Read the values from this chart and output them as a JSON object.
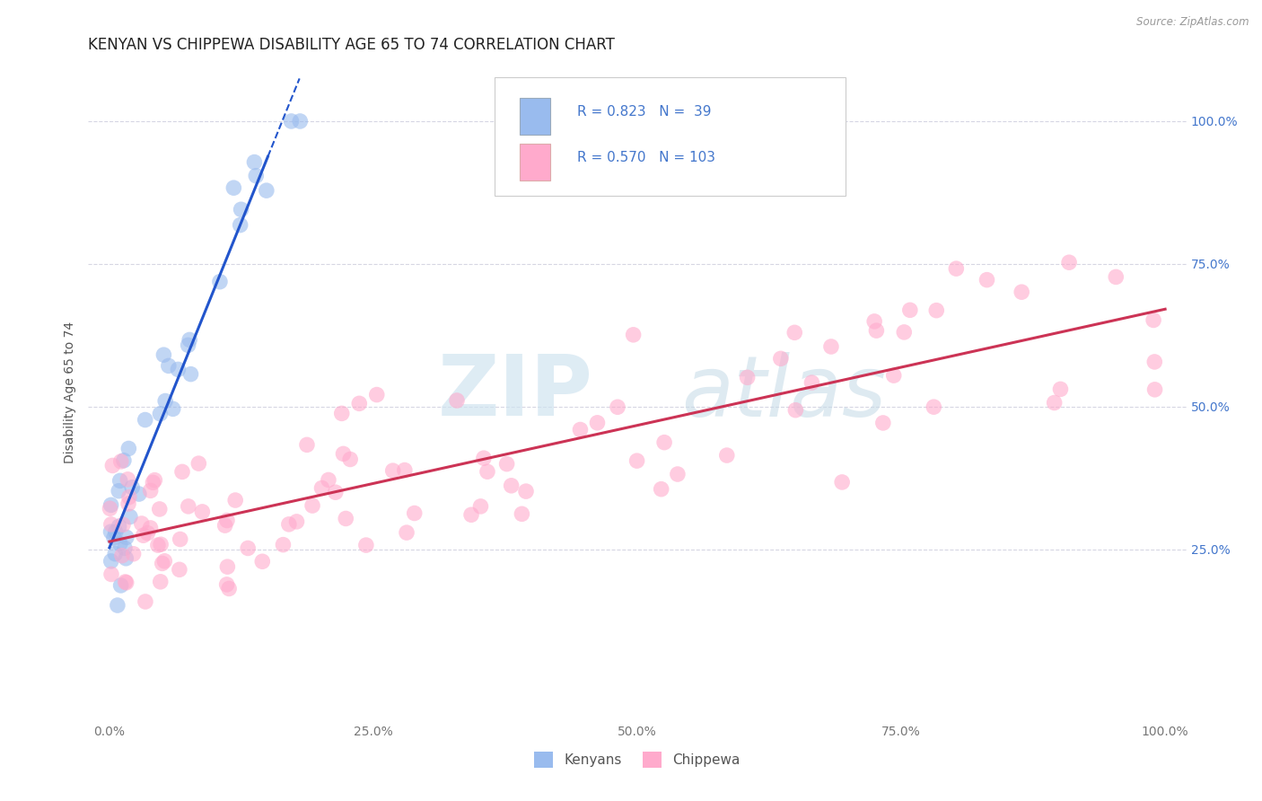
{
  "title": "KENYAN VS CHIPPEWA DISABILITY AGE 65 TO 74 CORRELATION CHART",
  "source_text": "Source: ZipAtlas.com",
  "ylabel": "Disability Age 65 to 74",
  "xticklabels": [
    "0.0%",
    "25.0%",
    "50.0%",
    "75.0%",
    "100.0%"
  ],
  "yticklabels": [
    "25.0%",
    "50.0%",
    "75.0%",
    "100.0%"
  ],
  "xlim": [
    -2.0,
    102.0
  ],
  "ylim": [
    -5.0,
    110.0
  ],
  "legend_r1": "R = 0.823",
  "legend_n1": "N =  39",
  "legend_r2": "R = 0.570",
  "legend_n2": "N = 103",
  "legend_label1": "Kenyans",
  "legend_label2": "Chippewa",
  "blue_scatter_color": "#99BBEE",
  "pink_scatter_color": "#FFAACC",
  "line_blue": "#2255CC",
  "line_pink": "#CC3355",
  "title_fontsize": 12,
  "axis_label_fontsize": 10,
  "tick_fontsize": 10,
  "ytick_color": "#4477CC",
  "xtick_color": "#777777",
  "watermark_zip": "ZIP",
  "watermark_atlas": "atlas",
  "background_color": "#FFFFFF",
  "grid_color": "#CCCCDD",
  "legend_text_color": "#4477CC",
  "bottom_legend_color": "#555555"
}
